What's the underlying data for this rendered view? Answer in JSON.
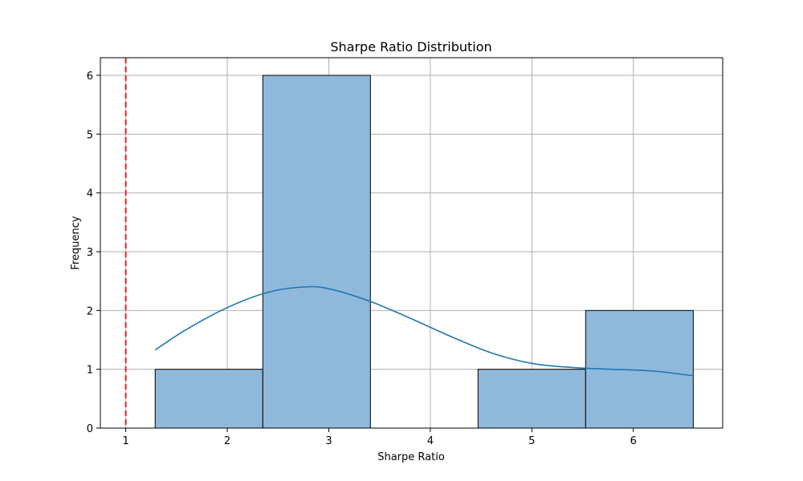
{
  "chart_data": {
    "type": "bar",
    "title": "Sharpe Ratio Distribution",
    "xlabel": "Sharpe Ratio",
    "ylabel": "Frequency",
    "xlim": [
      0.75,
      6.88
    ],
    "ylim": [
      0,
      6.3
    ],
    "xticks": [
      "1",
      "2",
      "3",
      "4",
      "5",
      "6"
    ],
    "yticks": [
      "0",
      "1",
      "2",
      "3",
      "4",
      "5",
      "6"
    ],
    "grid": true,
    "histogram": {
      "bin_edges": [
        1.29,
        2.35,
        3.41,
        4.47,
        5.53,
        6.59
      ],
      "counts": [
        1,
        6,
        0,
        1,
        2
      ],
      "color": "#8fb9da",
      "edge_color": "#000000"
    },
    "kde": {
      "color": "#1f77b4",
      "x": [
        1.29,
        1.6,
        2.0,
        2.4,
        2.75,
        3.0,
        3.4,
        3.8,
        4.2,
        4.6,
        5.0,
        5.4,
        5.8,
        6.2,
        6.59
      ],
      "y": [
        1.33,
        1.68,
        2.05,
        2.31,
        2.4,
        2.37,
        2.16,
        1.87,
        1.56,
        1.28,
        1.1,
        1.03,
        1.0,
        0.97,
        0.89
      ]
    },
    "reference_line": {
      "x": 1.0,
      "color": "#d62728",
      "style": "dashed"
    }
  }
}
